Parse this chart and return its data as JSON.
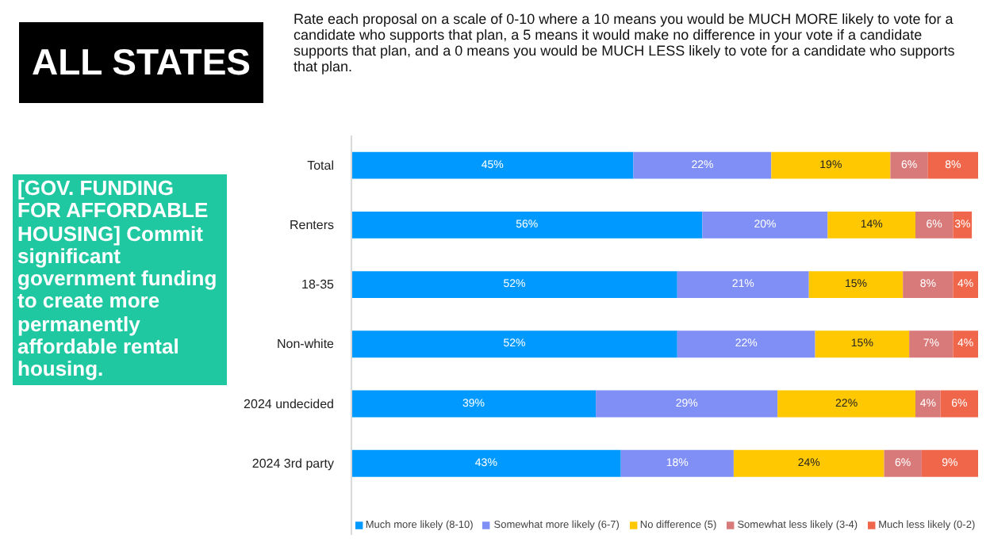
{
  "chart_data": {
    "type": "bar",
    "orientation": "horizontal",
    "stacked": true,
    "title": "ALL STATES",
    "subtitle": "Rate each proposal on a scale of 0-10 where a 10 means you would be MUCH MORE likely to vote for a candidate who supports that plan, a 5 means it would make no difference in your vote if a candidate supports that plan, and a 0 means you would be MUCH LESS likely to vote for a candidate who supports that plan.",
    "annotations": [
      "[GOV. FUNDING FOR AFFORDABLE HOUSING] Commit significant government funding to create more permanently affordable rental housing."
    ],
    "legend": "bottom",
    "categories": [
      "Total",
      "Renters",
      "18-35",
      "Non-white",
      "2024 undecided",
      "2024 3rd party"
    ],
    "series": [
      {
        "name": "Much more likely (8-10)",
        "color": "#0099ff",
        "values": [
          45,
          56,
          52,
          52,
          39,
          43
        ],
        "value_labels": [
          "45%",
          "56%",
          "52%",
          "52%",
          "39%",
          "43%"
        ]
      },
      {
        "name": "Somewhat more likely (6-7)",
        "color": "#7f8ff5",
        "values": [
          22,
          20,
          21,
          22,
          29,
          18
        ],
        "value_labels": [
          "22%",
          "20%",
          "21%",
          "22%",
          "29%",
          "18%"
        ]
      },
      {
        "name": "No difference (5)",
        "color": "#ffc800",
        "values": [
          19,
          14,
          15,
          15,
          22,
          24
        ],
        "value_labels": [
          "19%",
          "14%",
          "15%",
          "15%",
          "22%",
          "24%"
        ]
      },
      {
        "name": "Somewhat less likely (3-4)",
        "color": "#d97a7a",
        "values": [
          6,
          6,
          8,
          7,
          4,
          6
        ],
        "value_labels": [
          "6%",
          "6%",
          "8%",
          "7%",
          "4%",
          "6%"
        ]
      },
      {
        "name": "Much less likely (0-2)",
        "color": "#f0664a",
        "values": [
          8,
          3,
          4,
          4,
          6,
          9
        ],
        "value_labels": [
          "8%",
          "3%",
          "4%",
          "4%",
          "6%",
          "9%"
        ]
      }
    ]
  }
}
